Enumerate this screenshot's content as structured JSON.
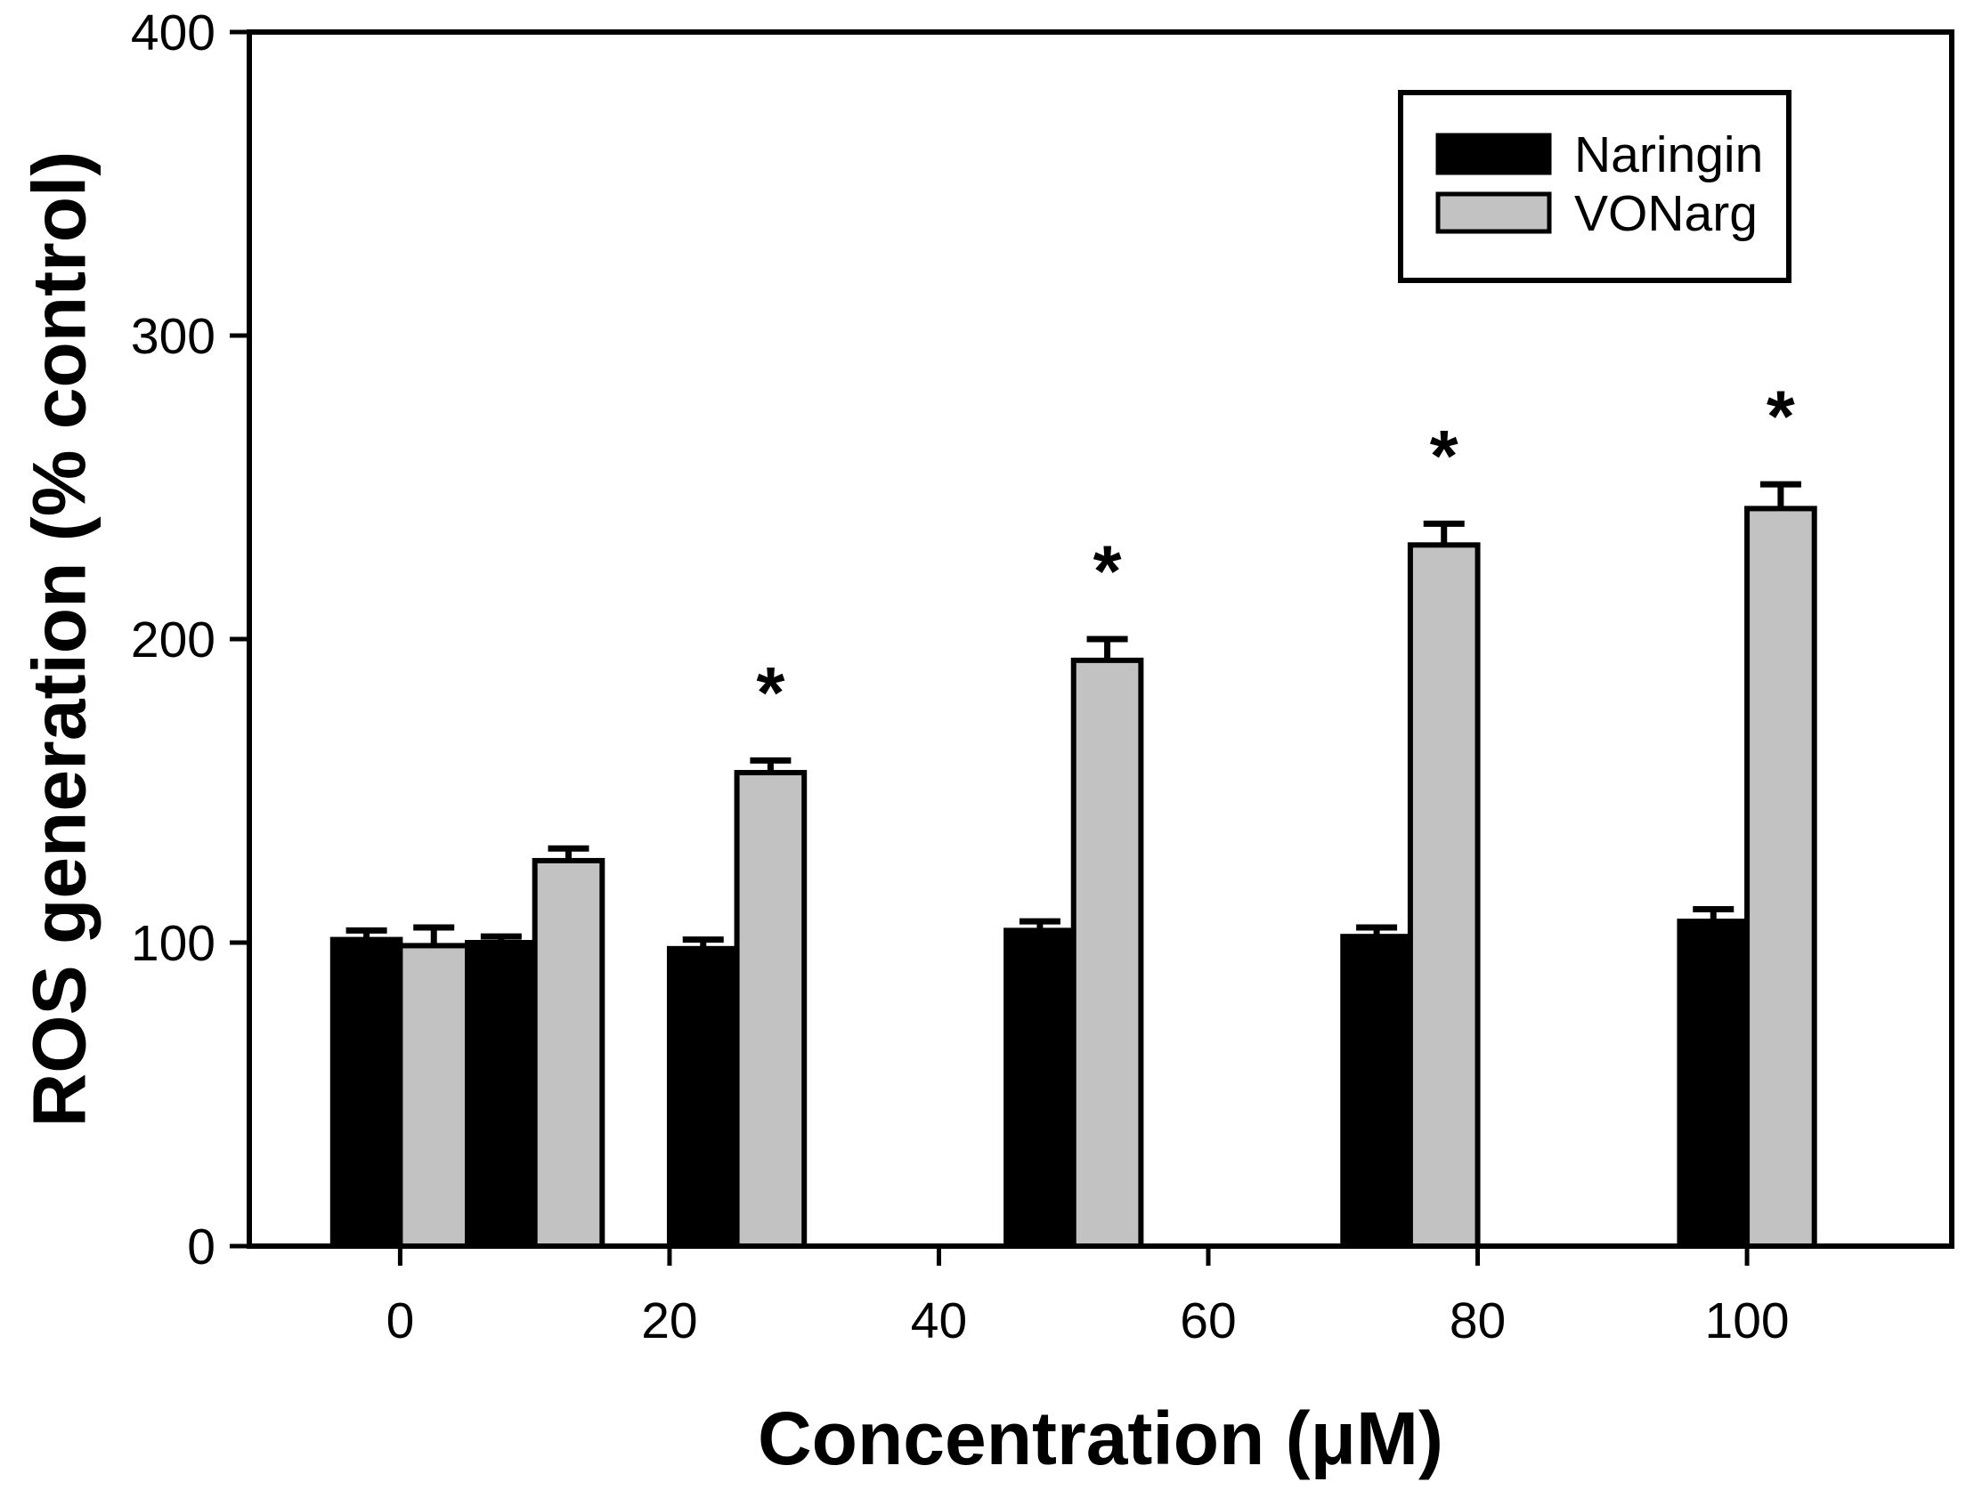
{
  "figure": {
    "description": "Grouped bar chart of ROS generation versus concentration for Naringin and VONarg",
    "background_color": "#ffffff",
    "foreground_color": "#000000"
  },
  "chart_data": {
    "type": "bar",
    "title": "",
    "xlabel": "Concentration (μM)",
    "ylabel": "ROS generation (% control)",
    "categories": [
      0,
      10,
      25,
      50,
      75,
      100
    ],
    "series": [
      {
        "name": "Naringin",
        "color": "#000000",
        "border_color": "#000000",
        "values": [
          101,
          100,
          98,
          104,
          102,
          107
        ],
        "errors": [
          3,
          2,
          3,
          3,
          3,
          4
        ],
        "significant": [
          false,
          false,
          false,
          false,
          false,
          false
        ]
      },
      {
        "name": "VONarg",
        "color": "#c2c2c2",
        "border_color": "#000000",
        "values": [
          99,
          127,
          156,
          193,
          231,
          243
        ],
        "errors": [
          6,
          4,
          4,
          7,
          7,
          8
        ],
        "significant": [
          false,
          false,
          true,
          true,
          true,
          true
        ]
      }
    ],
    "x_ticks": [
      0,
      20,
      40,
      60,
      80,
      100
    ],
    "x_tick_labels": [
      "0",
      "20",
      "40",
      "60",
      "80",
      "100"
    ],
    "y_ticks": [
      0,
      100,
      200,
      300,
      400
    ],
    "y_tick_labels": [
      "0",
      "100",
      "200",
      "300",
      "400"
    ],
    "x_range": [
      -11.2,
      115.2
    ],
    "y_range": [
      0,
      400
    ],
    "bar_width_units": 5,
    "grid": false,
    "frame": "full-box",
    "error_bars": "upper-only",
    "significance_marker": "*",
    "legend_position": "top-right",
    "legend_entries": [
      "Naringin",
      "VONarg"
    ]
  }
}
